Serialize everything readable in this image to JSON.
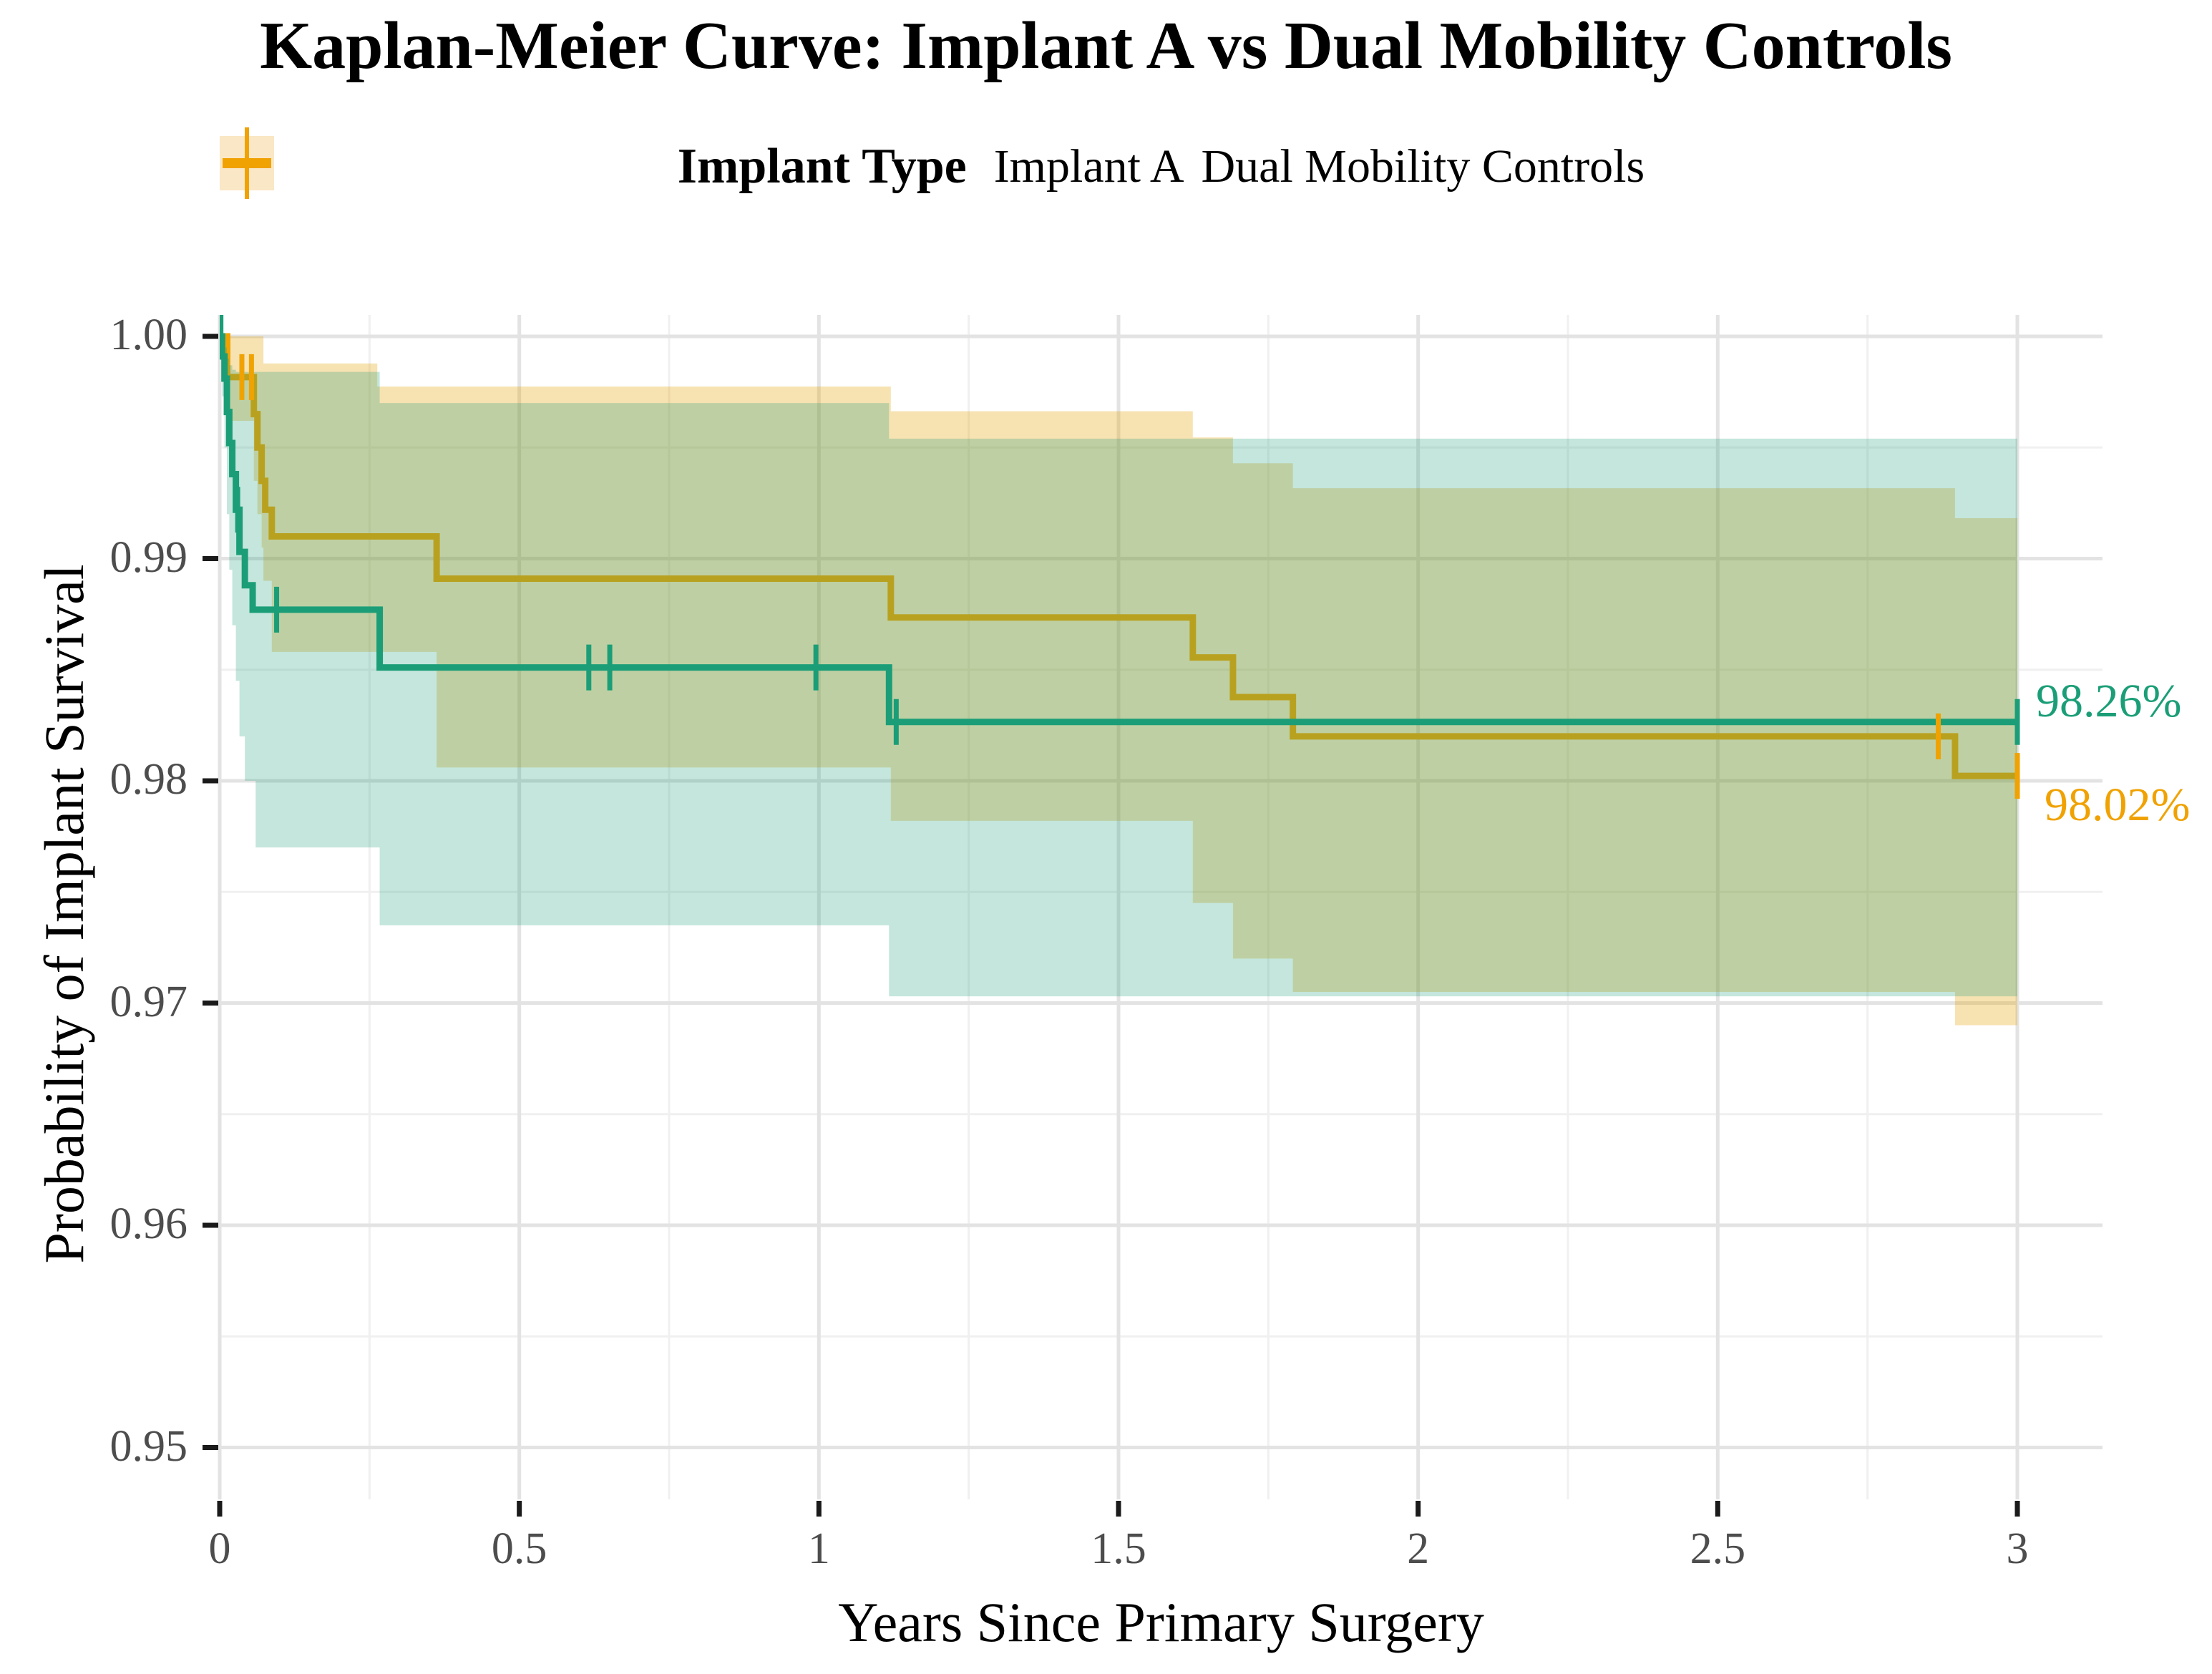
{
  "title": "Kaplan-Meier Curve: Implant A vs Dual Mobility Controls",
  "legend": {
    "title": "Implant Type",
    "items": [
      {
        "label": "Implant A",
        "color": "#1B9E77",
        "key_fill": "#D9EEE5"
      },
      {
        "label": "Dual Mobility Controls",
        "color": "#F0A202",
        "key_fill": "#FAE7C5"
      }
    ]
  },
  "chart_data": {
    "type": "line",
    "subtype": "kaplan-meier-step-with-confidence-bands",
    "title": "Kaplan-Meier Curve: Implant A vs Dual Mobility Controls",
    "xlabel": "Years Since Primary Surgery",
    "ylabel": "Probability of Implant Survival",
    "xlim": [
      0,
      3.14
    ],
    "ylim": [
      0.948,
      1.001
    ],
    "grid": true,
    "legend_position": "top",
    "xticks": [
      {
        "v": 0,
        "label": "0"
      },
      {
        "v": 0.5,
        "label": "0.5"
      },
      {
        "v": 1,
        "label": "1"
      },
      {
        "v": 1.5,
        "label": "1.5"
      },
      {
        "v": 2,
        "label": "2"
      },
      {
        "v": 2.5,
        "label": "2.5"
      },
      {
        "v": 3,
        "label": "3"
      }
    ],
    "yticks": [
      {
        "v": 1.0,
        "label": "1.00"
      },
      {
        "v": 0.99,
        "label": "0.99"
      },
      {
        "v": 0.98,
        "label": "0.98"
      },
      {
        "v": 0.97,
        "label": "0.97"
      },
      {
        "v": 0.96,
        "label": "0.96"
      },
      {
        "v": 0.95,
        "label": "0.95"
      }
    ],
    "x_minor": [
      0.25,
      0.75,
      1.25,
      1.75,
      2.25,
      2.75
    ],
    "y_minor": [
      0.955,
      0.965,
      0.975,
      0.985,
      0.995
    ],
    "style": {
      "grid_major": "#E3E3E3",
      "grid_minor": "#F0F0F0",
      "tick_color": "#1A1A1A",
      "tick_label_color": "#4D4D4D"
    },
    "series": [
      {
        "name": "Implant A",
        "color": "#1B9E77",
        "band_color": "#1B9E77",
        "band_opacity": 0.26,
        "end_label": "98.26%",
        "final_value": 0.98265,
        "t_end": 3.0,
        "steps": [
          [
            0,
            1.0
          ],
          [
            0.004,
            0.9991
          ],
          [
            0.008,
            0.9981
          ],
          [
            0.012,
            0.9966
          ],
          [
            0.016,
            0.9952
          ],
          [
            0.021,
            0.9938
          ],
          [
            0.027,
            0.9922
          ],
          [
            0.033,
            0.9903
          ],
          [
            0.042,
            0.9888
          ],
          [
            0.055,
            0.9877
          ],
          [
            0.267,
            0.9851
          ],
          [
            1.117,
            0.98265
          ]
        ],
        "censors": [
          [
            0.002,
            1.0
          ],
          [
            0.03,
            0.9922
          ],
          [
            0.095,
            0.9877
          ],
          [
            0.616,
            0.9851
          ],
          [
            0.651,
            0.9851
          ],
          [
            0.995,
            0.9851
          ],
          [
            1.129,
            0.98265
          ],
          [
            3.0,
            0.98265
          ]
        ],
        "band": [
          [
            0,
            1.0,
            1.0
          ],
          [
            0.004,
            0.9973,
            0.9998
          ],
          [
            0.008,
            0.995,
            0.9995
          ],
          [
            0.012,
            0.992,
            0.999
          ],
          [
            0.016,
            0.9895,
            0.9987
          ],
          [
            0.021,
            0.987,
            0.9985
          ],
          [
            0.027,
            0.9845,
            0.9984
          ],
          [
            0.033,
            0.982,
            0.9984
          ],
          [
            0.042,
            0.98,
            0.9984
          ],
          [
            0.06,
            0.977,
            0.9984
          ],
          [
            0.267,
            0.9735,
            0.997
          ],
          [
            1.117,
            0.9703,
            0.9954
          ]
        ]
      },
      {
        "name": "Dual Mobility Controls",
        "color": "#F0A202",
        "band_color": "#E69F00",
        "band_opacity": 0.3,
        "end_label": "98.02%",
        "final_value": 0.98022,
        "t_end": 3.0,
        "steps": [
          [
            0,
            1.0
          ],
          [
            0.0125,
            0.99817
          ],
          [
            0.057,
            0.9965
          ],
          [
            0.063,
            0.995
          ],
          [
            0.07,
            0.9935
          ],
          [
            0.076,
            0.9922
          ],
          [
            0.087,
            0.991
          ],
          [
            0.362,
            0.9891
          ],
          [
            1.12,
            0.98735
          ],
          [
            1.624,
            0.98555
          ],
          [
            1.691,
            0.98377
          ],
          [
            1.791,
            0.982
          ],
          [
            2.896,
            0.98022
          ]
        ],
        "censors": [
          [
            0.037,
            0.99817
          ],
          [
            0.053,
            0.99817
          ],
          [
            2.868,
            0.982
          ],
          [
            3.0,
            0.98022
          ]
        ],
        "band": [
          [
            0,
            1.0,
            1.0
          ],
          [
            0.0125,
            0.9962,
            1.0
          ],
          [
            0.057,
            0.9935,
            1.0
          ],
          [
            0.063,
            0.992,
            1.0
          ],
          [
            0.07,
            0.9905,
            1.0
          ],
          [
            0.073,
            0.989,
            0.99878
          ],
          [
            0.087,
            0.9858,
            0.99878
          ],
          [
            0.263,
            0.9858,
            0.99774
          ],
          [
            0.362,
            0.9806,
            0.99774
          ],
          [
            1.12,
            0.9782,
            0.99663
          ],
          [
            1.624,
            0.9745,
            0.99545
          ],
          [
            1.691,
            0.972,
            0.99429
          ],
          [
            1.791,
            0.9705,
            0.99317
          ],
          [
            2.896,
            0.969,
            0.99182
          ]
        ]
      }
    ]
  }
}
